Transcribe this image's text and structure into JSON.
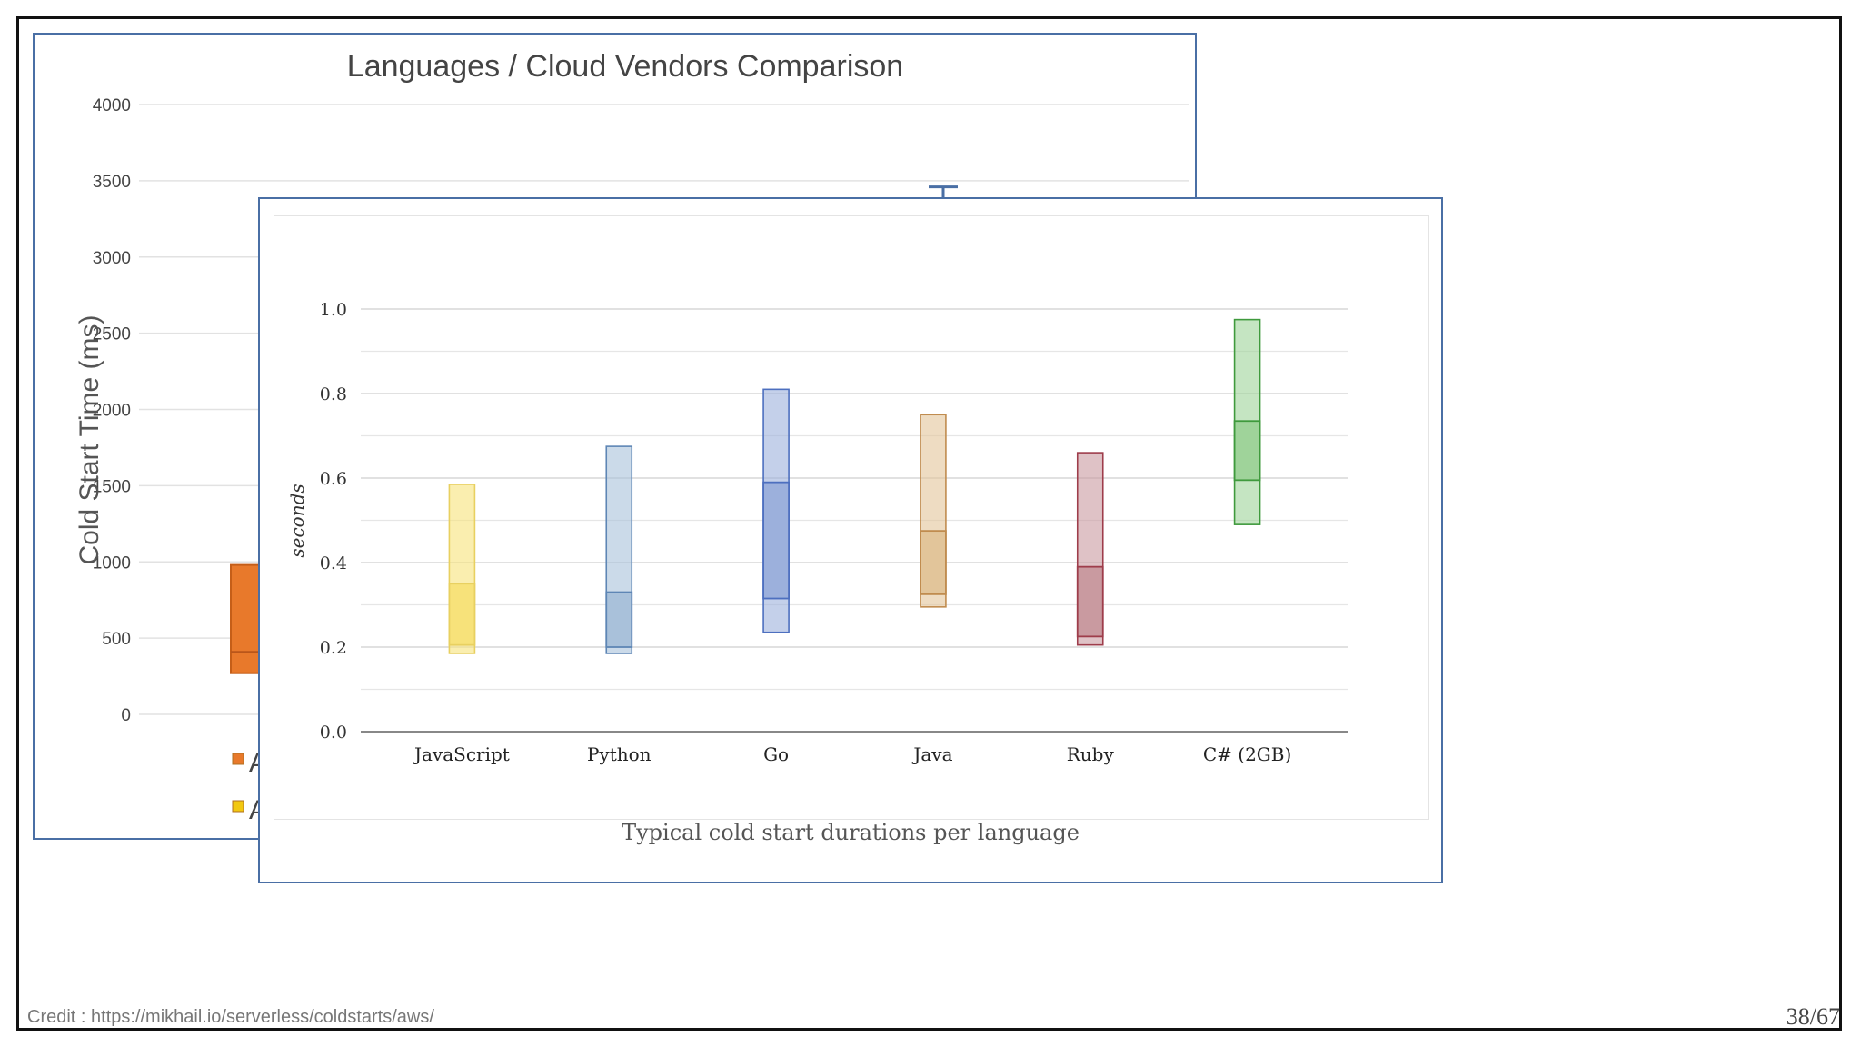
{
  "slide": {
    "credit": "Credit : https://mikhail.io/serverless/coldstarts/aws/",
    "page": "38/67"
  },
  "chart_data": [
    {
      "type": "box",
      "title": "Languages / Cloud Vendors Comparison",
      "ylabel": "Cold Start Time (ms)",
      "ylim": [
        0,
        4000
      ],
      "yticks": [
        "0",
        "500",
        "1000",
        "1500",
        "2000",
        "2500",
        "3000",
        "3500",
        "4000"
      ],
      "grid": true,
      "legend_markers": [
        {
          "color": "#e8792b",
          "text": "A"
        },
        {
          "color": "#f2c811",
          "text": "A"
        }
      ],
      "visible_series": [
        {
          "color": "#e8792b",
          "low": 270,
          "median": 410,
          "high": 980
        },
        {
          "color": "#4a6fa5",
          "whisker_top": 3460
        }
      ]
    },
    {
      "type": "box",
      "caption": "Typical cold start durations per language",
      "ylabel": "seconds",
      "ylim": [
        0,
        1.0
      ],
      "yticks": [
        "0.0",
        "0.2",
        "0.4",
        "0.6",
        "0.8",
        "1.0"
      ],
      "grid": true,
      "categories": [
        "JavaScript",
        "Python",
        "Go",
        "Java",
        "Ruby",
        "C# (2GB)"
      ],
      "series": [
        {
          "low": 0.185,
          "q1": 0.205,
          "median": 0.35,
          "high": 0.585,
          "fill": "#f7e27a",
          "stroke": "#e8d060"
        },
        {
          "low": 0.185,
          "q1": 0.2,
          "median": 0.33,
          "high": 0.675,
          "fill": "#a9c1da",
          "stroke": "#5e86b5"
        },
        {
          "low": 0.235,
          "q1": 0.315,
          "median": 0.59,
          "high": 0.81,
          "fill": "#9cb0dc",
          "stroke": "#4d6fbf"
        },
        {
          "low": 0.295,
          "q1": 0.325,
          "median": 0.475,
          "high": 0.75,
          "fill": "#e2c59a",
          "stroke": "#c08c4f"
        },
        {
          "low": 0.205,
          "q1": 0.225,
          "median": 0.39,
          "high": 0.66,
          "fill": "#c99aa0",
          "stroke": "#9e3d4b"
        },
        {
          "low": 0.49,
          "q1": 0.595,
          "median": 0.735,
          "high": 0.975,
          "fill": "#9fd39a",
          "stroke": "#3f9a3d"
        }
      ]
    }
  ]
}
